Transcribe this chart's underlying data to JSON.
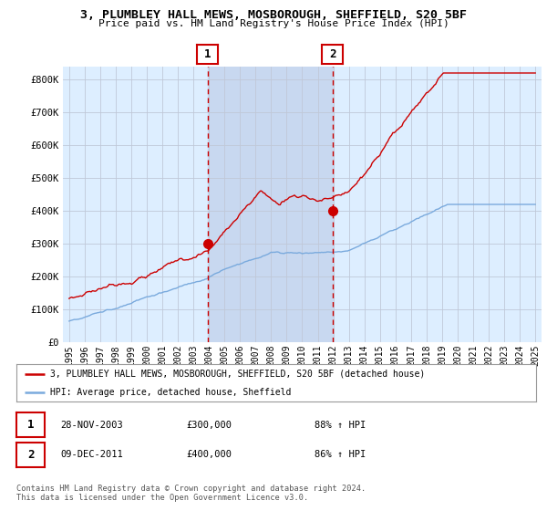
{
  "title": "3, PLUMBLEY HALL MEWS, MOSBOROUGH, SHEFFIELD, S20 5BF",
  "subtitle": "Price paid vs. HM Land Registry's House Price Index (HPI)",
  "legend_line1": "3, PLUMBLEY HALL MEWS, MOSBOROUGH, SHEFFIELD, S20 5BF (detached house)",
  "legend_line2": "HPI: Average price, detached house, Sheffield",
  "annotation1_label": "1",
  "annotation1_date": "28-NOV-2003",
  "annotation1_price": "£300,000",
  "annotation1_hpi": "88% ↑ HPI",
  "annotation2_label": "2",
  "annotation2_date": "09-DEC-2011",
  "annotation2_price": "£400,000",
  "annotation2_hpi": "86% ↑ HPI",
  "footer": "Contains HM Land Registry data © Crown copyright and database right 2024.\nThis data is licensed under the Open Government Licence v3.0.",
  "red_line_color": "#cc0000",
  "blue_line_color": "#7aaadd",
  "bg_color": "#ddeeff",
  "shade_color": "#c8d8f0",
  "grid_color": "#c0c8d8",
  "ylim": [
    0,
    840000
  ],
  "yticks": [
    0,
    100000,
    200000,
    300000,
    400000,
    500000,
    600000,
    700000,
    800000
  ],
  "xlim_left": 1994.6,
  "xlim_right": 2025.4,
  "sale1_x": 2003.91,
  "sale1_y": 300000,
  "sale2_x": 2011.94,
  "sale2_y": 400000
}
